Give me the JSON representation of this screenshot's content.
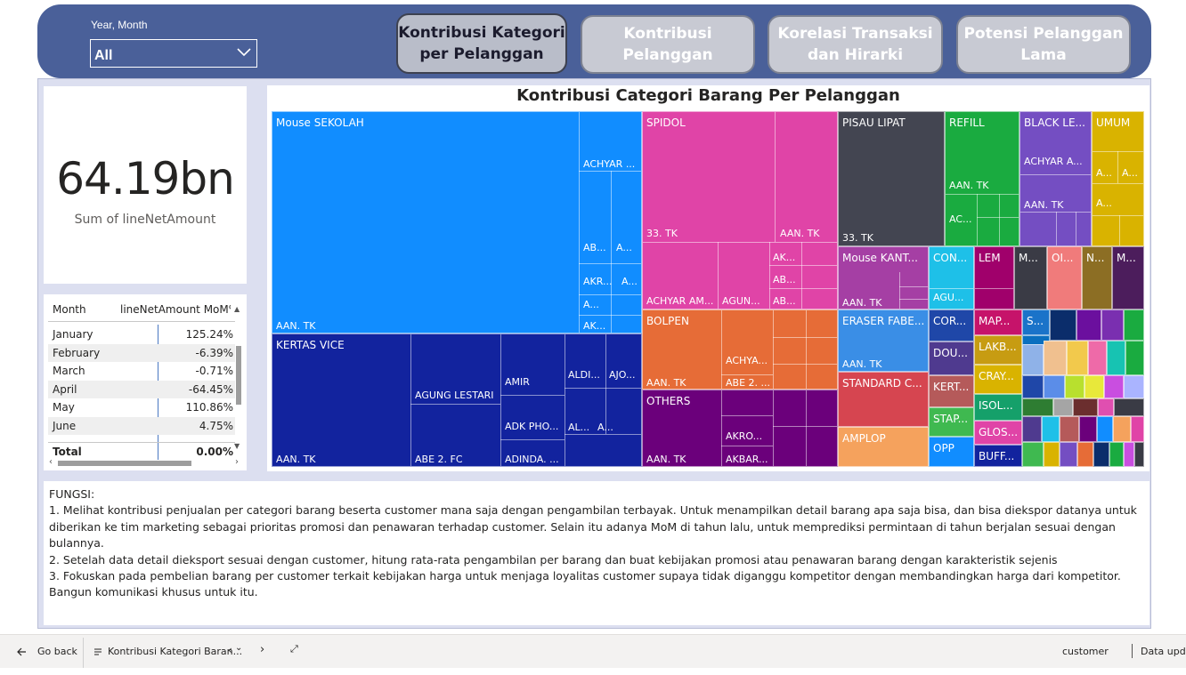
{
  "header": {
    "slicer_label": "Year, Month",
    "slicer_value": "All",
    "nav": [
      {
        "label_line1": "Kontribusi Kategori",
        "label_line2": "per Pelanggan"
      },
      {
        "label_line1": "Kontribusi",
        "label_line2": "Pelanggan"
      },
      {
        "label_line1": "Korelasi Transaksi",
        "label_line2": "dan Hirarki"
      },
      {
        "label_line1": "Potensi Pelanggan",
        "label_line2": "Lama"
      }
    ]
  },
  "card": {
    "value": "64.19bn",
    "label": "Sum of lineNetAmount"
  },
  "table": {
    "col1": "Month",
    "col2": "lineNetAmount MoM%",
    "rows": [
      {
        "month": "January",
        "value": "125.24%"
      },
      {
        "month": "February",
        "value": "-6.39%"
      },
      {
        "month": "March",
        "value": "-0.71%"
      },
      {
        "month": "April",
        "value": "-64.45%"
      },
      {
        "month": "May",
        "value": "110.86%"
      },
      {
        "month": "June",
        "value": "4.75%"
      }
    ],
    "total_label": "Total",
    "total_value": "0.00%"
  },
  "treemap": {
    "title": "Kontribusi Categori Barang Per Pelanggan",
    "colors": {
      "mouse": "#118dff",
      "kertas": "#12239e",
      "spidol": "#e044a7",
      "pisau": "#434551",
      "refill": "#1aab40",
      "black": "#744ec2",
      "umum": "#d9b300",
      "bolpen": "#e66c37",
      "others": "#6b007b",
      "mousek": "#d64550",
      "con": "#1ec0e8",
      "lem": "#a0006b"
    },
    "tiles": {
      "mouse_sekolah": "Mouse SEKOLAH",
      "kertas_vice": "KERTAS VICE",
      "spidol": "SPIDOL",
      "bolpen": "BOLPEN",
      "others": "OTHERS",
      "pisau_lipat": "PISAU LIPAT",
      "refill": "REFILL",
      "black_le": "BLACK LE...",
      "umum": "UMUM",
      "mouse_kant": "Mouse KANT...",
      "con": "CON...",
      "lem": "LEM",
      "m1": "M...",
      "oi": "OI...",
      "n": "N...",
      "m2": "M...",
      "eraser_fabe": "ERASER FABE...",
      "cor": "COR...",
      "map": "MAP...",
      "s": "S...",
      "dou": "DOU...",
      "lakb": "LAKB...",
      "standard_c": "STANDARD C...",
      "kert": "KERT...",
      "cray": "CRAY...",
      "stap": "STAP...",
      "isol": "ISOL...",
      "glos": "GLOS...",
      "amplop": "AMPLOP",
      "opp": "OPP",
      "buff": "BUFF..."
    },
    "sublabels": {
      "aan_tk_mouse": "AAN. TK",
      "achyar1": "ACHYAR ...",
      "ab1": "AB...",
      "a1": "A...",
      "akr": "AKR...",
      "a2": "A...",
      "a3": "A...",
      "ak1": "AK...",
      "agung_lestari": "AGUNG LESTARI",
      "amir": "AMIR",
      "aldi": "ALDI...",
      "ajo": "AJO...",
      "adk_pho": "ADK PHO...",
      "al": "AL...",
      "a4": "A...",
      "aan_tk_kertas": "AAN. TK",
      "abe2fc": "ABE 2. FC",
      "adinda": "ADINDA. ...",
      "t33_spidol": "33. TK",
      "aan_tk_spidol": "AAN. TK",
      "achyar_am": "ACHYAR AM...",
      "agun": "AGUN...",
      "ak2": "AK...",
      "ab2": "AB...",
      "ab3": "AB...",
      "aan_tk_bolpen": "AAN. TK",
      "achya": "ACHYA...",
      "abe2": "ABE 2. ...",
      "aan_tk_others": "AAN. TK",
      "akro": "AKRO...",
      "akbar": "AKBAR...",
      "t33_pisau": "33. TK",
      "aan_tk_refill": "AAN. TK",
      "ac_refill": "AC...",
      "achyar_a": "ACHYAR A...",
      "aan_tk_black": "AAN. TK",
      "a_umum1": "A...",
      "a_umum2": "A...",
      "a_umum3": "A...",
      "aan_tk_mousek": "AAN. TK",
      "agu": "AGU...",
      "aan_tk_eraser": "AAN. TK"
    }
  },
  "notes": {
    "heading": "FUNGSI:",
    "line1": "1. Melihat kontribusi penjualan per categori barang beserta customer mana saja dengan pengambilan terbayak. Untuk menampilkan detail barang apa saja bisa, dan bisa diekspor datanya untuk diberikan ke tim marketing sebagai prioritas promosi dan penawaran terhadap customer. Selain itu adanya MoM di tahun lalu, untuk memprediksi permintaan di tahun berjalan sesuai dengan bulannya.",
    "line2": "2. Setelah data detail dieksport sesuai dengan customer, hitung rata-rata pengambilan per barang dan buat kebijakan promosi atau penawaran barang dengan karakteristik sejenis",
    "line3": "3. Fokuskan pada pembelian barang per customer terkait kebijakan harga untuk menjaga loyalitas customer supaya tidak diganggu kompetitor dengan membandingkan harga dari kompetitor. Bangun komunikasi khusus untuk itu."
  },
  "bottombar": {
    "go_back": "Go back",
    "page": "Kontribusi Kategori Baran...",
    "customer": "customer",
    "data_updated": "Data updat"
  }
}
